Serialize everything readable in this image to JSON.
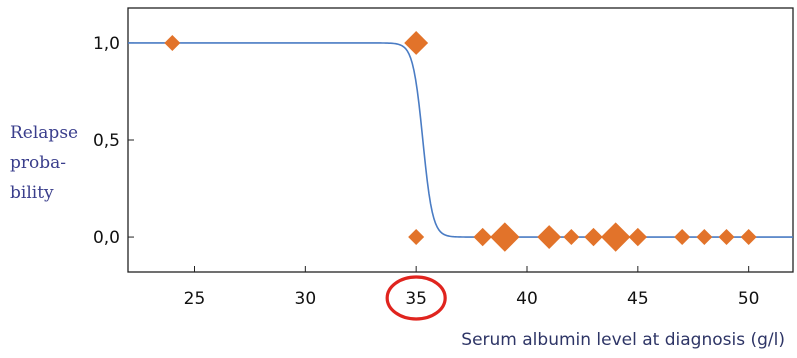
{
  "chart_data": {
    "type": "scatter",
    "xlabel": "Serum albumin level at diagnosis (g/l)",
    "ylabel_lines": [
      "Relapse",
      "proba-",
      "bility"
    ],
    "xlim": [
      22,
      52
    ],
    "ylim": [
      -0.18,
      1.18
    ],
    "x_ticks": [
      25,
      30,
      35,
      40,
      45,
      50
    ],
    "x_tick_labels": [
      "25",
      "30",
      "35",
      "40",
      "45",
      "50"
    ],
    "y_ticks": [
      0,
      0.5,
      1
    ],
    "y_tick_labels": [
      "0,0",
      "0,5",
      "1,0"
    ],
    "highlighted_tick": 35,
    "curve": {
      "type": "logistic",
      "midpoint": 35.3,
      "steepness": 4.5
    },
    "points": [
      {
        "x": 24,
        "y": 1,
        "size": 1
      },
      {
        "x": 35,
        "y": 1,
        "size": 3
      },
      {
        "x": 35,
        "y": 0,
        "size": 1
      },
      {
        "x": 38,
        "y": 0,
        "size": 1.5
      },
      {
        "x": 39,
        "y": 0,
        "size": 5
      },
      {
        "x": 41,
        "y": 0,
        "size": 3
      },
      {
        "x": 42,
        "y": 0,
        "size": 1
      },
      {
        "x": 43,
        "y": 0,
        "size": 1.5
      },
      {
        "x": 44,
        "y": 0,
        "size": 5
      },
      {
        "x": 45,
        "y": 0,
        "size": 1.5
      },
      {
        "x": 47,
        "y": 0,
        "size": 1
      },
      {
        "x": 48,
        "y": 0,
        "size": 1
      },
      {
        "x": 49,
        "y": 0,
        "size": 1
      },
      {
        "x": 50,
        "y": 0,
        "size": 1
      }
    ],
    "colors": {
      "curve": "#4a7cc4",
      "points": "#e2732a",
      "highlight": "#e0241e",
      "frame": "#222222"
    }
  }
}
